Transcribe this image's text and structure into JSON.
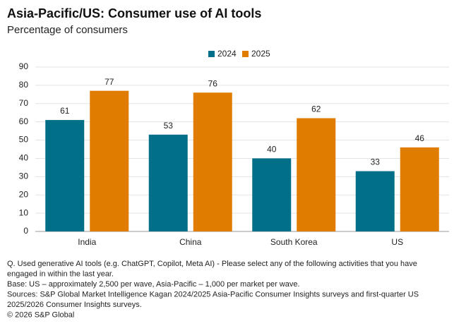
{
  "chart_data": {
    "type": "bar",
    "title": "Asia-Pacific/US: Consumer use of AI tools",
    "subtitle": "Percentage of consumers",
    "categories": [
      "India",
      "China",
      "South Korea",
      "US"
    ],
    "series": [
      {
        "name": "2024",
        "color": "#006f87",
        "values": [
          61,
          53,
          40,
          33
        ]
      },
      {
        "name": "2025",
        "color": "#e07c00",
        "values": [
          77,
          76,
          62,
          46
        ]
      }
    ],
    "ylim": [
      0,
      90
    ],
    "yticks": [
      0,
      10,
      20,
      30,
      40,
      50,
      60,
      70,
      80,
      90
    ],
    "grid": true,
    "legend": "top",
    "notes": [
      "Q.  Used generative AI tools (e.g. ChatGPT, Copilot, Meta AI) - Please select any of the following activities that you have",
      "engaged in within the last year.",
      "Base: US – approximately 2,500 per wave, Asia-Pacific – 1,000 per market per wave.",
      "Sources: S&P Global Market Intelligence Kagan 2024/2025 Asia-Pacific Consumer Insights surveys and first-quarter US",
      "2025/2026 Consumer Insights surveys.",
      "© 2026 S&P Global"
    ]
  }
}
